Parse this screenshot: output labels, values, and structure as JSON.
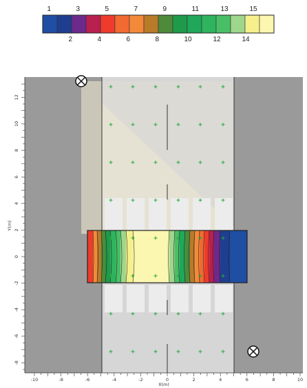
{
  "legend": {
    "colors": [
      "#1f4ea3",
      "#1e3f8f",
      "#6b2a8c",
      "#b8204f",
      "#ee3b2c",
      "#f06a32",
      "#f28a3a",
      "#b97a2a",
      "#4e8a3a",
      "#1f9a4a",
      "#20a85a",
      "#2fb45d",
      "#48bf67",
      "#9ed68c",
      "#f5f08a",
      "#fbf6b0"
    ],
    "top_labels": [
      "1",
      "3",
      "5",
      "7",
      "9",
      "11",
      "13",
      "15"
    ],
    "bottom_labels": [
      "2",
      "4",
      "6",
      "8",
      "10",
      "12",
      "14"
    ]
  },
  "axes": {
    "x_ticks": [
      "-10",
      "-8",
      "-6",
      "-4",
      "-2",
      "0",
      "2",
      "4",
      "6",
      "8",
      "10"
    ],
    "y_ticks": [
      "12",
      "10",
      "8",
      "6",
      "4",
      "2",
      "0",
      "-2",
      "-4",
      "-6",
      "-8"
    ],
    "x_label": "X(m)",
    "y_label": "Y(m)"
  },
  "scene": {
    "luminaire_icons": [
      "luminaire-top-left",
      "luminaire-bottom-right"
    ]
  }
}
